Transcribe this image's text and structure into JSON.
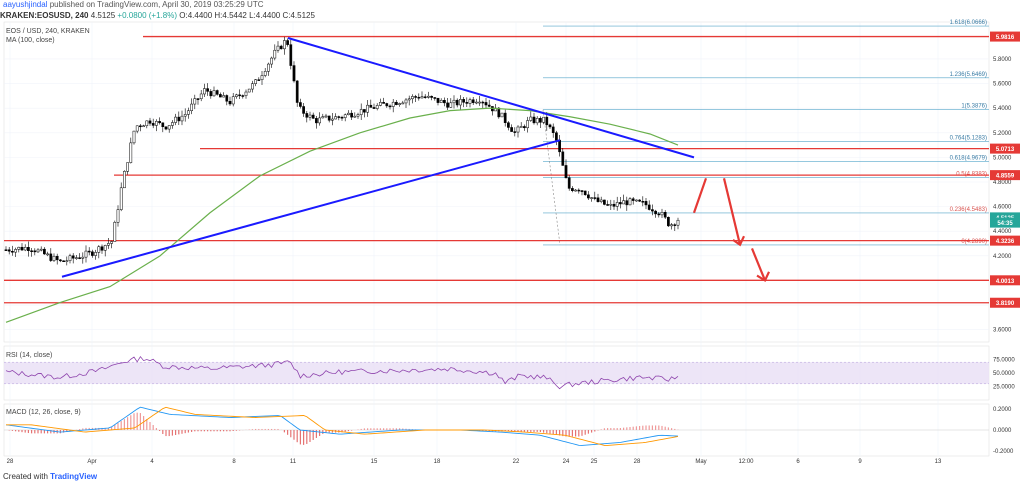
{
  "header": {
    "user": "aayushjindal",
    "published": "published on TradingView.com, April 30, 2019 03:25:29 UTC"
  },
  "ohlc": {
    "symbol": "KRAKEN:EOSUSD, 240",
    "last": "4.5125",
    "change": "+0.0800 (+1.8%)",
    "open_label": "O:",
    "open": "4.4400",
    "high_label": "H:",
    "high": "4.5442",
    "low_label": "L:",
    "low": "4.4400",
    "close_label": "C:",
    "close": "4.5125"
  },
  "pane_labels": {
    "title": "EOS / USD, 240, KRAKEN",
    "ma": "MA (100, close)",
    "rsi": "RSI (14, close)",
    "macd": "MACD (12, 26, close, 9)"
  },
  "footer": {
    "created_with": "Created with",
    "brand": "TradingView"
  },
  "colors": {
    "bull": "#26a69a",
    "bear": "#ef5350",
    "candle_body_bear": "#000000",
    "candle_body_bull": "#ffffff",
    "trendline": "#1a1aff",
    "ma": "#6ab04c",
    "hline": "#e53935",
    "fib": "#56a6c9",
    "rsi_line": "#8e44ad",
    "rsi_band": "#e8dff5",
    "macd_line": "#2196f3",
    "signal_line": "#ff9800",
    "histogram": "#e57373"
  },
  "chart_data": {
    "type": "candlestick",
    "title": "EOS / USD, 240, KRAKEN",
    "ylim": [
      3.5,
      6.1
    ],
    "x_ticks": [
      "28",
      "Apr",
      "4",
      "8",
      "11",
      "15",
      "18",
      "22",
      "24",
      "25",
      "28",
      "May",
      "12:00",
      "6",
      "9",
      "13"
    ],
    "y_ticks": [
      "5.8000",
      "5.6000",
      "5.4000",
      "5.2000",
      "5.0000",
      "4.8000",
      "4.6000",
      "4.4000",
      "4.2000",
      "4.0000",
      "3.8000",
      "3.6000"
    ],
    "price_tags": [
      {
        "label": "5.9816",
        "value": 5.9816
      },
      {
        "label": "5.0713",
        "value": 5.0713
      },
      {
        "label": "4.8559",
        "value": 4.8559
      },
      {
        "label": "4.5125",
        "value": 4.5125
      },
      {
        "label": "54:35",
        "value": 4.47
      },
      {
        "label": "4.3236",
        "value": 4.3236
      },
      {
        "label": "4.0013",
        "value": 4.0013
      },
      {
        "label": "3.8190",
        "value": 3.819
      }
    ],
    "fib_levels": [
      {
        "label": "1.618(6.0666)",
        "value": 6.0666
      },
      {
        "label": "1.236(5.6469)",
        "value": 5.6469
      },
      {
        "label": "1(5.3876)",
        "value": 5.3876
      },
      {
        "label": "0.764(5.1283)",
        "value": 5.1283
      },
      {
        "label": "0.618(4.9679)",
        "value": 4.9679
      },
      {
        "label": "0.5(4.8383)",
        "value": 4.8383
      },
      {
        "label": "0.236(4.5483)",
        "value": 4.5483
      },
      {
        "label": "0(4.2890)",
        "value": 4.289
      }
    ],
    "horizontal_levels": [
      5.9816,
      5.0713,
      4.8559,
      4.3236,
      4.0013,
      3.819
    ],
    "ma_period": 100,
    "rsi": {
      "ylim": [
        0,
        100
      ],
      "ticks": [
        "75.0000",
        "50.0000",
        "25.0000"
      ]
    },
    "macd": {
      "ticks": [
        "0.2000",
        "0.0000",
        "-0.2000"
      ]
    }
  }
}
